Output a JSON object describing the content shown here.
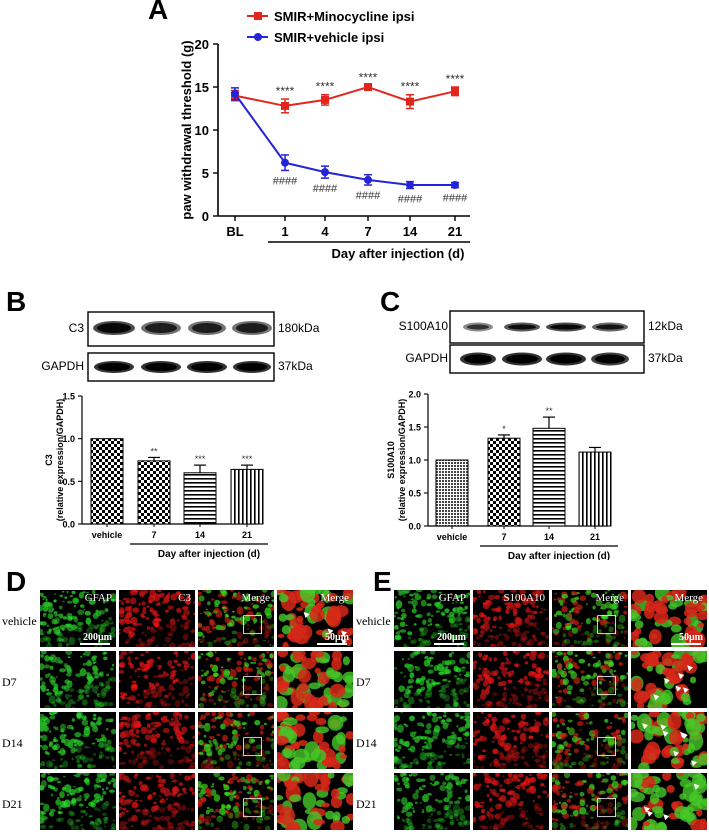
{
  "panel_letters": {
    "A": "A",
    "B": "B",
    "C": "C",
    "D": "D",
    "E": "E"
  },
  "colors": {
    "minocycline": "#e2261c",
    "vehicle": "#2323d8",
    "green_channel": "#1f9a1f",
    "red_channel": "#c41818"
  },
  "chart_data": [
    {
      "id": "A",
      "type": "line",
      "categories": [
        "BL",
        "1",
        "4",
        "7",
        "14",
        "21"
      ],
      "series": [
        {
          "name": "SMIR+Minocycline ipsi",
          "values": [
            14.0,
            12.8,
            13.5,
            15.0,
            13.3,
            14.5
          ],
          "errors": [
            0.6,
            0.8,
            0.6,
            0.2,
            0.8,
            0.5
          ],
          "marker": "square"
        },
        {
          "name": "SMIR+vehicle ipsi",
          "values": [
            14.2,
            6.2,
            5.1,
            4.2,
            3.6,
            3.6
          ],
          "errors": [
            0.7,
            0.9,
            0.7,
            0.6,
            0.4,
            0.3
          ],
          "marker": "circle"
        }
      ],
      "annotations_top": [
        "****",
        "****",
        "****",
        "****",
        "****"
      ],
      "annotations_bottom": [
        "####",
        "####",
        "####",
        "####",
        "####"
      ],
      "ylabel": "paw withdrawal threshold (g)",
      "xlabel": "Day after injection (d)",
      "ylim": [
        0,
        20
      ],
      "yticks": [
        "0",
        "5",
        "10",
        "15",
        "20"
      ]
    },
    {
      "id": "B",
      "type": "bar",
      "categories": [
        "vehicle",
        "7",
        "14",
        "21"
      ],
      "values": [
        1.0,
        0.74,
        0.6,
        0.64
      ],
      "errors": [
        0.0,
        0.04,
        0.09,
        0.05
      ],
      "significance": [
        "",
        "**",
        "***",
        "***"
      ],
      "ylabel_top": "C3",
      "ylabel": "(relative expression/GAPDH)",
      "xlabel": "Day after injection (d)",
      "ylim": [
        0,
        1.5
      ],
      "yticks": [
        "0.0",
        "0.5",
        "1.0",
        "1.5"
      ]
    },
    {
      "id": "C",
      "type": "bar",
      "categories": [
        "vehicle",
        "7",
        "14",
        "21"
      ],
      "values": [
        1.0,
        1.33,
        1.48,
        1.12
      ],
      "errors": [
        0.0,
        0.05,
        0.17,
        0.07
      ],
      "significance": [
        "",
        "*",
        "**",
        ""
      ],
      "ylabel_top": "S100A10",
      "ylabel": "(relative expression/GAPDH)",
      "xlabel": "Day after injection (d)",
      "ylim": [
        0,
        2.0
      ],
      "yticks": [
        "0.0",
        "0.5",
        "1.0",
        "1.5",
        "2.0"
      ]
    }
  ],
  "blot_B": {
    "bands": [
      {
        "label": "C3",
        "size": "180kDa"
      },
      {
        "label": "GAPDH",
        "size": "37kDa"
      }
    ]
  },
  "blot_C": {
    "bands": [
      {
        "label": "S100A10",
        "size": "12kDa"
      },
      {
        "label": "GAPDH",
        "size": "37kDa"
      }
    ]
  },
  "panel_D": {
    "columns": [
      "GFAP",
      "C3",
      "Merge",
      "Merge"
    ],
    "rows": [
      "vehicle",
      "D7",
      "D14",
      "D21"
    ],
    "scale_small": "200μm",
    "scale_large": "50μm"
  },
  "panel_E": {
    "columns": [
      "GFAP",
      "S100A10",
      "Merge",
      "Merge"
    ],
    "rows": [
      "vehicle",
      "D7",
      "D14",
      "D21"
    ],
    "scale_small": "200μm",
    "scale_large": "50μm"
  }
}
